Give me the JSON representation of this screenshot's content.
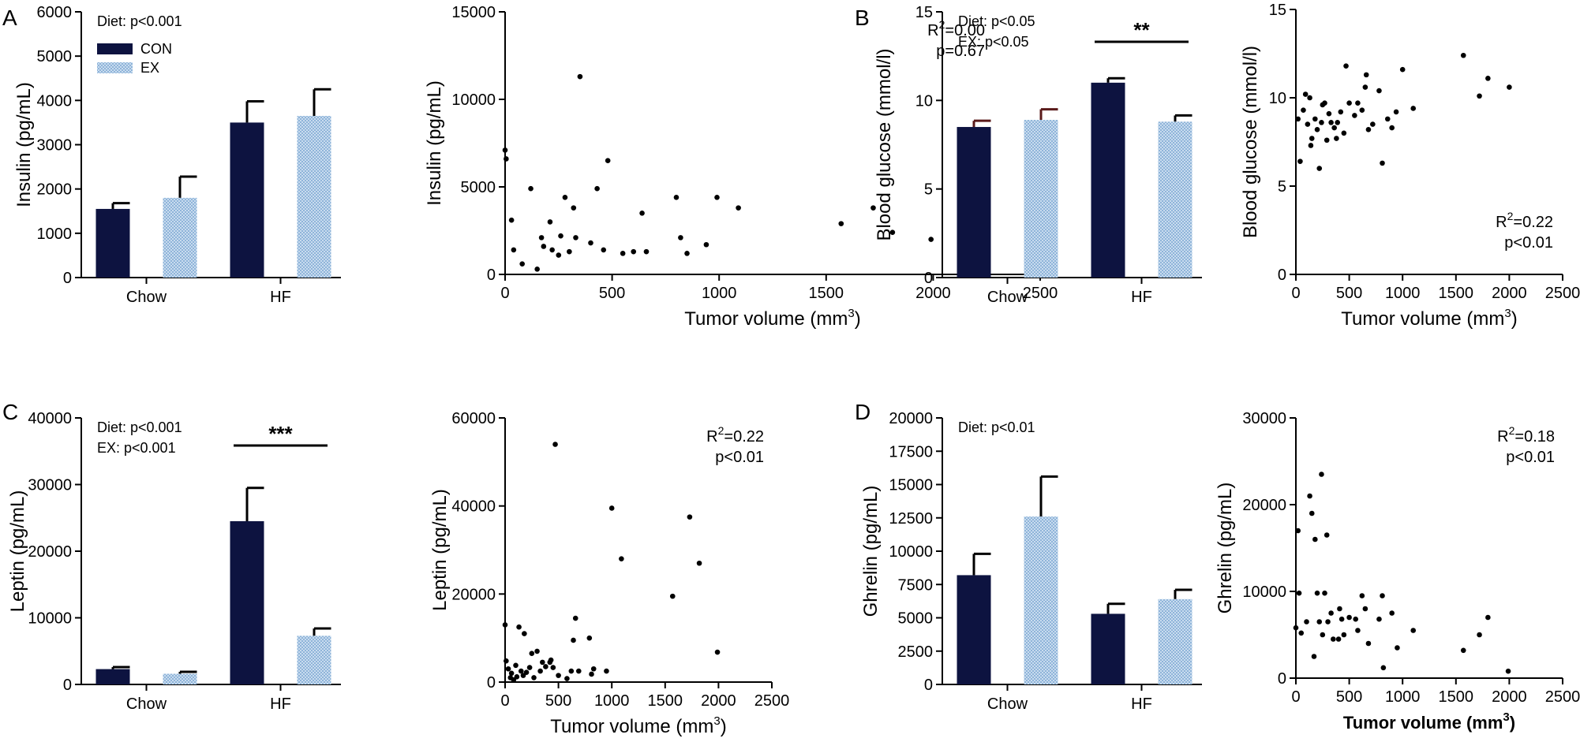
{
  "colors": {
    "con": "#0d1340",
    "ex": "#8fb4d9",
    "ink": "#000000",
    "err_dark": "#5a1a1a"
  },
  "legend": {
    "con": "CON",
    "ex": "EX"
  },
  "chart_data": [
    {
      "id": "A-bar",
      "panel_label": "A",
      "type": "bar",
      "ylabel": "Insulin (pg/mL)",
      "ylim": [
        0,
        6000
      ],
      "yticks": [
        "0",
        "1000",
        "2000",
        "3000",
        "4000",
        "5000",
        "6000"
      ],
      "categories": [
        "Chow",
        "HF"
      ],
      "series": [
        {
          "name": "CON",
          "values": [
            1550,
            3500
          ],
          "errors": [
            130,
            480
          ]
        },
        {
          "name": "EX",
          "values": [
            1800,
            3650
          ],
          "errors": [
            480,
            600
          ]
        }
      ],
      "annotations": [
        "Diet: p<0.001"
      ],
      "significance": null,
      "show_legend": true
    },
    {
      "id": "A-scatter",
      "type": "scatter",
      "xlabel": "Tumor volume (mm",
      "xlabel_sup": "3",
      "xlabel_end": ")",
      "ylabel": "Insulin (pg/mL)",
      "xlim": [
        0,
        2500
      ],
      "ylim": [
        0,
        15000
      ],
      "xticks": [
        "0",
        "500",
        "1000",
        "1500",
        "2000",
        "2500"
      ],
      "yticks": [
        "0",
        "5000",
        "10000",
        "15000"
      ],
      "stats": {
        "r2_prefix": "R",
        "r2_sup": "2",
        "r2_value": "=0.00",
        "p": "p=0.67"
      },
      "points": [
        [
          0,
          7100
        ],
        [
          5,
          6600
        ],
        [
          30,
          3100
        ],
        [
          40,
          1400
        ],
        [
          80,
          600
        ],
        [
          120,
          4900
        ],
        [
          150,
          300
        ],
        [
          170,
          2100
        ],
        [
          180,
          1600
        ],
        [
          210,
          3000
        ],
        [
          220,
          1400
        ],
        [
          250,
          1100
        ],
        [
          260,
          2200
        ],
        [
          280,
          4400
        ],
        [
          300,
          1300
        ],
        [
          320,
          3800
        ],
        [
          330,
          2100
        ],
        [
          350,
          11300
        ],
        [
          400,
          1800
        ],
        [
          430,
          4900
        ],
        [
          460,
          1400
        ],
        [
          480,
          6500
        ],
        [
          550,
          1200
        ],
        [
          600,
          1300
        ],
        [
          640,
          3500
        ],
        [
          660,
          1300
        ],
        [
          800,
          4400
        ],
        [
          820,
          2100
        ],
        [
          850,
          1200
        ],
        [
          940,
          1700
        ],
        [
          990,
          4400
        ],
        [
          1090,
          3800
        ],
        [
          1570,
          2900
        ],
        [
          1720,
          3800
        ],
        [
          1810,
          2400
        ],
        [
          1990,
          2000
        ]
      ]
    },
    {
      "id": "B-bar",
      "panel_label": "B",
      "type": "bar",
      "ylabel": "Blood glucose (mmol/l)",
      "ylim": [
        0,
        15
      ],
      "yticks": [
        "0",
        "5",
        "10",
        "15"
      ],
      "categories": [
        "Chow",
        "HF"
      ],
      "series": [
        {
          "name": "CON",
          "values": [
            8.5,
            11.0
          ],
          "errors": [
            0.35,
            0.25
          ]
        },
        {
          "name": "EX",
          "values": [
            8.9,
            8.8
          ],
          "errors": [
            0.6,
            0.35
          ]
        }
      ],
      "annotations": [
        "Diet: p<0.05",
        "EX: p<0.05"
      ],
      "significance": "**",
      "show_legend": false
    },
    {
      "id": "B-scatter",
      "type": "scatter",
      "xlabel": "Tumor volume (mm",
      "xlabel_sup": "3",
      "xlabel_end": ")",
      "ylabel": "Blood glucose (mmol/l)",
      "xlim": [
        0,
        2500
      ],
      "ylim": [
        0,
        15
      ],
      "xticks": [
        "0",
        "500",
        "1000",
        "1500",
        "2000",
        "2500"
      ],
      "yticks": [
        "0",
        "5",
        "10",
        "15"
      ],
      "stats": {
        "r2_prefix": "R",
        "r2_sup": "2",
        "r2_value": "=0.22",
        "p": "p<0.01"
      },
      "points": [
        [
          20,
          8.8
        ],
        [
          40,
          6.4
        ],
        [
          70,
          9.3
        ],
        [
          90,
          10.2
        ],
        [
          110,
          8.5
        ],
        [
          130,
          10.0
        ],
        [
          140,
          7.3
        ],
        [
          150,
          7.7
        ],
        [
          180,
          8.8
        ],
        [
          200,
          8.2
        ],
        [
          220,
          6.0
        ],
        [
          240,
          8.6
        ],
        [
          250,
          9.6
        ],
        [
          270,
          9.7
        ],
        [
          290,
          7.6
        ],
        [
          310,
          9.1
        ],
        [
          330,
          8.6
        ],
        [
          360,
          8.3
        ],
        [
          380,
          7.7
        ],
        [
          390,
          8.6
        ],
        [
          420,
          9.2
        ],
        [
          450,
          8.0
        ],
        [
          470,
          11.8
        ],
        [
          500,
          9.7
        ],
        [
          550,
          9.0
        ],
        [
          580,
          9.7
        ],
        [
          620,
          9.3
        ],
        [
          650,
          10.6
        ],
        [
          660,
          11.3
        ],
        [
          680,
          8.2
        ],
        [
          720,
          8.5
        ],
        [
          780,
          10.4
        ],
        [
          810,
          6.3
        ],
        [
          860,
          8.8
        ],
        [
          900,
          8.3
        ],
        [
          940,
          9.2
        ],
        [
          1000,
          11.6
        ],
        [
          1100,
          9.4
        ],
        [
          1570,
          12.4
        ],
        [
          1720,
          10.1
        ],
        [
          1800,
          11.1
        ],
        [
          2000,
          10.6
        ]
      ]
    },
    {
      "id": "C-bar",
      "panel_label": "C",
      "type": "bar",
      "ylabel": "Leptin (pg/mL)",
      "ylim": [
        0,
        40000
      ],
      "yticks": [
        "0",
        "10000",
        "20000",
        "30000",
        "40000"
      ],
      "categories": [
        "Chow",
        "HF"
      ],
      "series": [
        {
          "name": "CON",
          "values": [
            2300,
            24500
          ],
          "errors": [
            300,
            5000
          ]
        },
        {
          "name": "EX",
          "values": [
            1600,
            7300
          ],
          "errors": [
            300,
            1100
          ]
        }
      ],
      "annotations": [
        "Diet: p<0.001",
        "EX: p<0.001"
      ],
      "significance": "***",
      "show_legend": false
    },
    {
      "id": "C-scatter",
      "type": "scatter",
      "xlabel": "Tumor volume (mm",
      "xlabel_sup": "3",
      "xlabel_end": ")",
      "ylabel": "Leptin (pg/mL)",
      "xlim": [
        0,
        2500
      ],
      "ylim": [
        0,
        60000
      ],
      "xticks": [
        "0",
        "500",
        "1000",
        "1500",
        "2000",
        "2500"
      ],
      "yticks": [
        "0",
        "20000",
        "40000",
        "60000"
      ],
      "stats": {
        "r2_prefix": "R",
        "r2_sup": "2",
        "r2_value": "=0.22",
        "p": "p<0.01"
      },
      "points": [
        [
          0,
          13000
        ],
        [
          10,
          4800
        ],
        [
          30,
          3000
        ],
        [
          50,
          1000
        ],
        [
          60,
          2000
        ],
        [
          80,
          500
        ],
        [
          100,
          3800
        ],
        [
          110,
          1200
        ],
        [
          130,
          12500
        ],
        [
          150,
          2500
        ],
        [
          170,
          1500
        ],
        [
          180,
          11000
        ],
        [
          200,
          2200
        ],
        [
          230,
          3300
        ],
        [
          250,
          6500
        ],
        [
          270,
          1000
        ],
        [
          300,
          7000
        ],
        [
          330,
          2500
        ],
        [
          350,
          4500
        ],
        [
          380,
          3500
        ],
        [
          420,
          4500
        ],
        [
          430,
          5000
        ],
        [
          450,
          3300
        ],
        [
          470,
          54000
        ],
        [
          500,
          1500
        ],
        [
          580,
          800
        ],
        [
          620,
          2500
        ],
        [
          640,
          9500
        ],
        [
          660,
          14500
        ],
        [
          690,
          2500
        ],
        [
          790,
          10000
        ],
        [
          810,
          1800
        ],
        [
          830,
          3000
        ],
        [
          950,
          2500
        ],
        [
          1000,
          39500
        ],
        [
          1090,
          28000
        ],
        [
          1570,
          19500
        ],
        [
          1730,
          37500
        ],
        [
          1820,
          27000
        ],
        [
          1990,
          6800
        ]
      ]
    },
    {
      "id": "D-bar",
      "panel_label": "D",
      "type": "bar",
      "ylabel": "Ghrelin (pg/mL)",
      "ylim": [
        0,
        20000
      ],
      "yticks": [
        "0",
        "2500",
        "5000",
        "7500",
        "10000",
        "12500",
        "15000",
        "17500",
        "20000"
      ],
      "categories": [
        "Chow",
        "HF"
      ],
      "series": [
        {
          "name": "CON",
          "values": [
            8200,
            5300
          ],
          "errors": [
            1600,
            750
          ]
        },
        {
          "name": "EX",
          "values": [
            12600,
            6400
          ],
          "errors": [
            3000,
            700
          ]
        }
      ],
      "annotations": [
        "Diet: p<0.01"
      ],
      "significance": null,
      "show_legend": false
    },
    {
      "id": "D-scatter",
      "type": "scatter",
      "xlabel": "Tumor volume (mm",
      "xlabel_sup": "3",
      "xlabel_end": ")",
      "xlabel_bold": true,
      "ylabel": "Ghrelin (pg/mL)",
      "xlim": [
        0,
        2500
      ],
      "ylim": [
        0,
        30000
      ],
      "xticks": [
        "0",
        "500",
        "1000",
        "1500",
        "2000",
        "2500"
      ],
      "yticks": [
        "0",
        "10000",
        "20000",
        "30000"
      ],
      "stats": {
        "r2_prefix": "R",
        "r2_sup": "2",
        "r2_value": "=0.18",
        "p": "p<0.01"
      },
      "points": [
        [
          0,
          5800
        ],
        [
          20,
          17000
        ],
        [
          30,
          9800
        ],
        [
          50,
          5200
        ],
        [
          100,
          6500
        ],
        [
          130,
          21000
        ],
        [
          150,
          19000
        ],
        [
          170,
          2500
        ],
        [
          180,
          16000
        ],
        [
          200,
          9800
        ],
        [
          220,
          6500
        ],
        [
          240,
          23500
        ],
        [
          250,
          5000
        ],
        [
          270,
          9800
        ],
        [
          290,
          16500
        ],
        [
          300,
          6500
        ],
        [
          330,
          7500
        ],
        [
          350,
          4500
        ],
        [
          400,
          4500
        ],
        [
          410,
          8000
        ],
        [
          430,
          6800
        ],
        [
          450,
          5000
        ],
        [
          500,
          7000
        ],
        [
          560,
          6800
        ],
        [
          580,
          5500
        ],
        [
          620,
          9500
        ],
        [
          650,
          8000
        ],
        [
          680,
          4000
        ],
        [
          780,
          6800
        ],
        [
          810,
          9500
        ],
        [
          820,
          1200
        ],
        [
          900,
          7500
        ],
        [
          950,
          3500
        ],
        [
          1100,
          5500
        ],
        [
          1570,
          3200
        ],
        [
          1720,
          5000
        ],
        [
          1800,
          7000
        ],
        [
          1990,
          800
        ]
      ]
    }
  ]
}
